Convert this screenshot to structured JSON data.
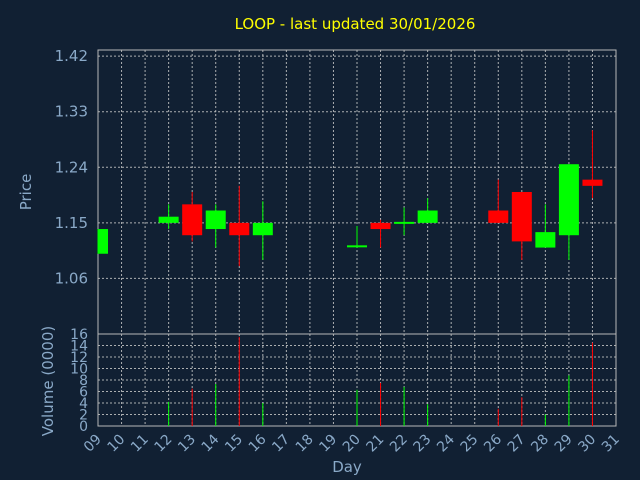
{
  "chart_data": {
    "type": "candlestick",
    "title": "LOOP - last updated 30/01/2026",
    "xlabel": "Day",
    "ylabel": "Price",
    "volume_label": "Volume (0000)",
    "x_ticks": [
      "09",
      "10",
      "11",
      "12",
      "13",
      "14",
      "15",
      "16",
      "17",
      "18",
      "19",
      "20",
      "21",
      "22",
      "23",
      "24",
      "25",
      "26",
      "27",
      "28",
      "29",
      "30",
      "31"
    ],
    "y_ticks": [
      "1.42",
      "1.33",
      "1.24",
      "1.15",
      "1.06"
    ],
    "ylim": [
      0.97,
      1.43
    ],
    "volume_ticks": [
      "16",
      "14",
      "12",
      "10",
      "8",
      "6",
      "4",
      "2",
      "0"
    ],
    "volume_ylim": [
      0,
      16
    ],
    "grid": true,
    "colors": {
      "up": "#00ff00",
      "down": "#ff0000",
      "background": "#112033",
      "title": "#ffff00",
      "text": "#8aa9c8"
    },
    "candles": [
      {
        "day": "09",
        "open": 1.1,
        "high": 1.14,
        "low": 1.1,
        "close": 1.14,
        "volume": 0
      },
      {
        "day": "12",
        "open": 1.15,
        "high": 1.18,
        "low": 1.14,
        "close": 1.16,
        "volume": 4.2
      },
      {
        "day": "13",
        "open": 1.18,
        "high": 1.2,
        "low": 1.12,
        "close": 1.13,
        "volume": 6.5
      },
      {
        "day": "14",
        "open": 1.14,
        "high": 1.18,
        "low": 1.11,
        "close": 1.17,
        "volume": 7.3
      },
      {
        "day": "15",
        "open": 1.15,
        "high": 1.21,
        "low": 1.08,
        "close": 1.13,
        "volume": 15.5
      },
      {
        "day": "16",
        "open": 1.13,
        "high": 1.185,
        "low": 1.09,
        "close": 1.15,
        "volume": 4.0
      },
      {
        "day": "20",
        "open": 1.11,
        "high": 1.145,
        "low": 1.11,
        "close": 1.112,
        "volume": 6.3
      },
      {
        "day": "21",
        "open": 1.15,
        "high": 1.155,
        "low": 1.11,
        "close": 1.14,
        "volume": 7.5
      },
      {
        "day": "22",
        "open": 1.148,
        "high": 1.175,
        "low": 1.13,
        "close": 1.15,
        "volume": 6.8
      },
      {
        "day": "23",
        "open": 1.15,
        "high": 1.19,
        "low": 1.15,
        "close": 1.17,
        "volume": 3.8
      },
      {
        "day": "26",
        "open": 1.17,
        "high": 1.22,
        "low": 1.15,
        "close": 1.15,
        "volume": 3.0
      },
      {
        "day": "27",
        "open": 1.2,
        "high": 1.2,
        "low": 1.09,
        "close": 1.12,
        "volume": 5.0
      },
      {
        "day": "28",
        "open": 1.11,
        "high": 1.18,
        "low": 1.11,
        "close": 1.135,
        "volume": 2.0
      },
      {
        "day": "29",
        "open": 1.13,
        "high": 1.245,
        "low": 1.09,
        "close": 1.245,
        "volume": 8.8
      },
      {
        "day": "30",
        "open": 1.22,
        "high": 1.3,
        "low": 1.19,
        "close": 1.21,
        "volume": 14.5
      }
    ]
  }
}
